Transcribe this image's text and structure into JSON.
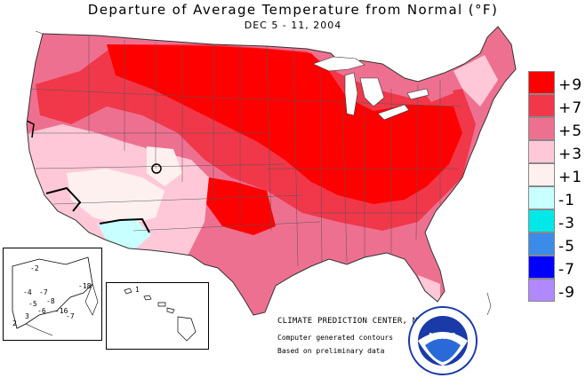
{
  "title": "Departure of Average Temperature from Normal (°F)",
  "subtitle": "DEC 5 - 11, 2004",
  "legend": {
    "items": [
      {
        "label": "+9",
        "color": "#ff0000"
      },
      {
        "label": "+7",
        "color": "#f0384a"
      },
      {
        "label": "+5",
        "color": "#ee7090"
      },
      {
        "label": "+3",
        "color": "#ffc8d8"
      },
      {
        "label": "+1",
        "color": "#fff0f0"
      },
      {
        "label": "-1",
        "color": "#c8ffff"
      },
      {
        "label": "-3",
        "color": "#00e8e8"
      },
      {
        "label": "-5",
        "color": "#3a8ce8"
      },
      {
        "label": "-7",
        "color": "#0000ff"
      },
      {
        "label": "-9",
        "color": "#b088ff"
      }
    ]
  },
  "credits": {
    "line1": "CLIMATE PREDICTION CENTER, NOAA",
    "line2": "Computer generated contours",
    "line3": "Based on preliminary data"
  },
  "alaska_labels": [
    "-2",
    "-4",
    "-7",
    "-18",
    "-5",
    "-8",
    "-6",
    "-16",
    "3",
    "-7",
    "2"
  ],
  "hawaii_labels": [
    "1"
  ],
  "logo": {
    "text": "NOAA"
  }
}
